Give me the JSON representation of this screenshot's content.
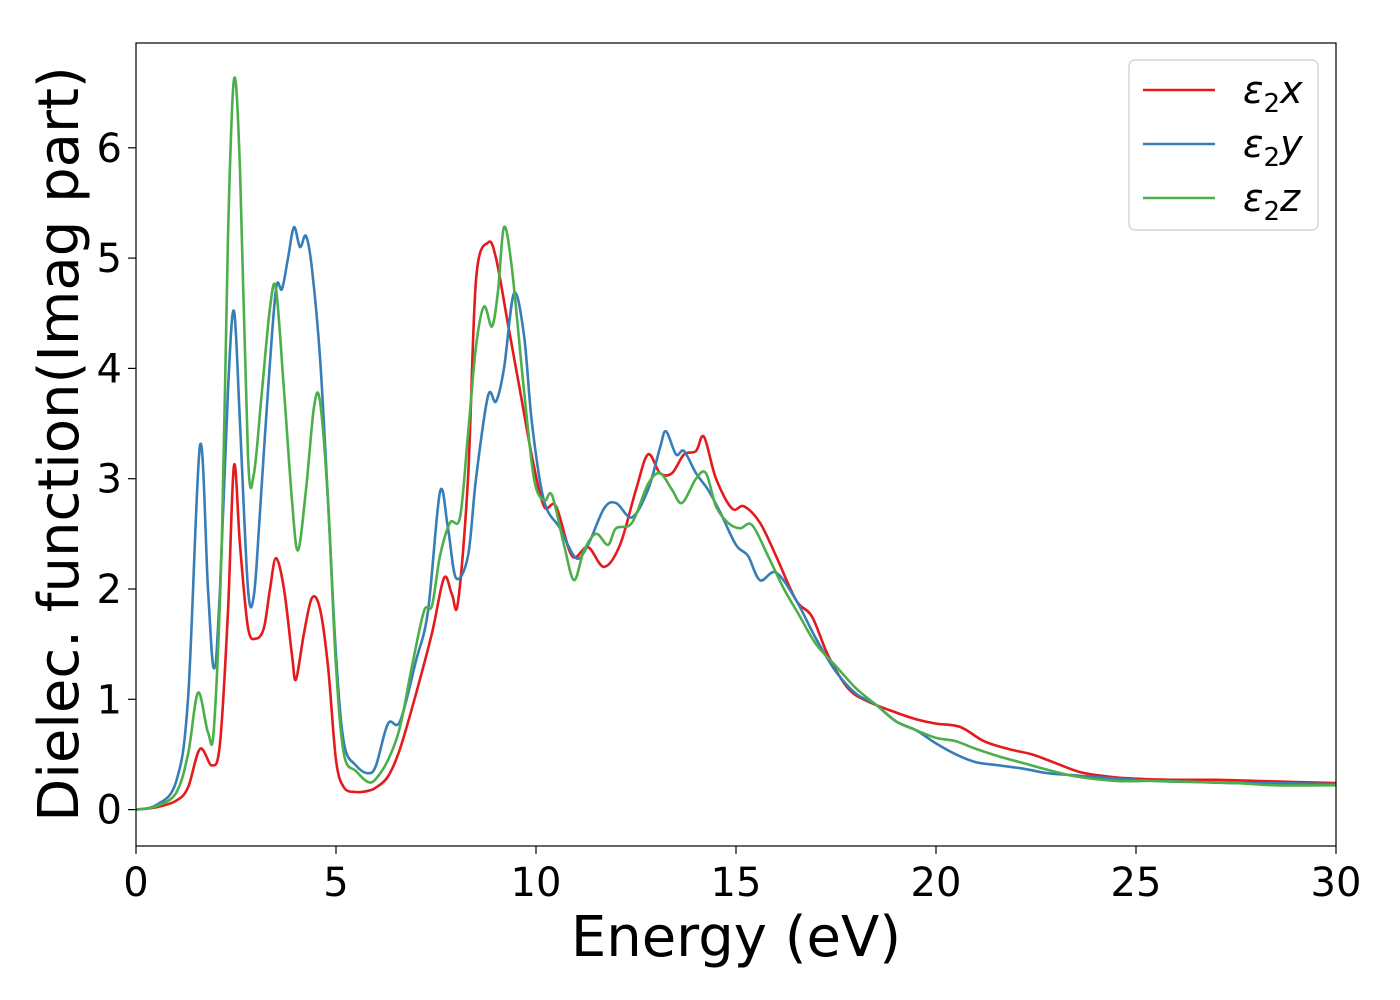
{
  "chart_data": {
    "type": "line",
    "xlabel": "Energy (eV)",
    "ylabel": "Dielec. function(Imag part)",
    "xlim": [
      0,
      30
    ],
    "ylim": [
      -0.33,
      6.95
    ],
    "xticks": [
      0,
      5,
      10,
      15,
      20,
      25,
      30
    ],
    "yticks": [
      0,
      1,
      2,
      3,
      4,
      5,
      6
    ],
    "grid": false,
    "legend_position": "top-right",
    "series": [
      {
        "name": "ε₂x",
        "legend_base": "ε",
        "legend_sub": "2",
        "legend_suffix": "x",
        "color": "#e41a1c",
        "points": [
          [
            0,
            0
          ],
          [
            0.5,
            0.02
          ],
          [
            1,
            0.08
          ],
          [
            1.3,
            0.2
          ],
          [
            1.6,
            0.55
          ],
          [
            1.9,
            0.4
          ],
          [
            2.1,
            0.6
          ],
          [
            2.3,
            1.8
          ],
          [
            2.45,
            3.12
          ],
          [
            2.6,
            2.4
          ],
          [
            2.8,
            1.65
          ],
          [
            3,
            1.55
          ],
          [
            3.2,
            1.65
          ],
          [
            3.35,
            2.0
          ],
          [
            3.5,
            2.28
          ],
          [
            3.7,
            2.0
          ],
          [
            3.9,
            1.4
          ],
          [
            4.0,
            1.18
          ],
          [
            4.2,
            1.6
          ],
          [
            4.4,
            1.92
          ],
          [
            4.6,
            1.82
          ],
          [
            4.8,
            1.3
          ],
          [
            5.0,
            0.45
          ],
          [
            5.2,
            0.2
          ],
          [
            5.5,
            0.16
          ],
          [
            5.8,
            0.17
          ],
          [
            6.0,
            0.2
          ],
          [
            6.3,
            0.3
          ],
          [
            6.6,
            0.55
          ],
          [
            7.0,
            1.05
          ],
          [
            7.4,
            1.6
          ],
          [
            7.7,
            2.1
          ],
          [
            7.9,
            1.95
          ],
          [
            8.05,
            1.88
          ],
          [
            8.3,
            3.0
          ],
          [
            8.5,
            4.8
          ],
          [
            8.8,
            5.14
          ],
          [
            9.0,
            5.0
          ],
          [
            9.3,
            4.4
          ],
          [
            9.6,
            3.8
          ],
          [
            9.9,
            3.2
          ],
          [
            10.2,
            2.75
          ],
          [
            10.5,
            2.75
          ],
          [
            10.9,
            2.3
          ],
          [
            11.3,
            2.38
          ],
          [
            11.7,
            2.2
          ],
          [
            12.1,
            2.4
          ],
          [
            12.5,
            2.9
          ],
          [
            12.8,
            3.22
          ],
          [
            13.1,
            3.05
          ],
          [
            13.4,
            3.05
          ],
          [
            13.7,
            3.22
          ],
          [
            14.0,
            3.25
          ],
          [
            14.2,
            3.38
          ],
          [
            14.5,
            3.0
          ],
          [
            14.9,
            2.73
          ],
          [
            15.2,
            2.75
          ],
          [
            15.6,
            2.6
          ],
          [
            16.0,
            2.3
          ],
          [
            16.5,
            1.9
          ],
          [
            16.9,
            1.75
          ],
          [
            17.3,
            1.4
          ],
          [
            17.8,
            1.1
          ],
          [
            18.3,
            0.98
          ],
          [
            19.0,
            0.88
          ],
          [
            19.5,
            0.82
          ],
          [
            20.0,
            0.78
          ],
          [
            20.6,
            0.75
          ],
          [
            21.2,
            0.62
          ],
          [
            21.8,
            0.55
          ],
          [
            22.4,
            0.5
          ],
          [
            23.0,
            0.42
          ],
          [
            23.6,
            0.34
          ],
          [
            24.3,
            0.3
          ],
          [
            25.0,
            0.28
          ],
          [
            26.0,
            0.27
          ],
          [
            27.0,
            0.27
          ],
          [
            28.0,
            0.26
          ],
          [
            29.0,
            0.25
          ],
          [
            30.0,
            0.24
          ]
        ]
      },
      {
        "name": "ε₂y",
        "legend_base": "ε",
        "legend_sub": "2",
        "legend_suffix": "y",
        "color": "#377eb8",
        "points": [
          [
            0,
            0
          ],
          [
            0.5,
            0.04
          ],
          [
            1,
            0.25
          ],
          [
            1.3,
            1.0
          ],
          [
            1.6,
            3.3
          ],
          [
            1.8,
            2.0
          ],
          [
            1.95,
            1.28
          ],
          [
            2.1,
            2.0
          ],
          [
            2.3,
            3.8
          ],
          [
            2.45,
            4.52
          ],
          [
            2.6,
            3.5
          ],
          [
            2.8,
            2.0
          ],
          [
            2.95,
            1.95
          ],
          [
            3.1,
            2.7
          ],
          [
            3.3,
            3.8
          ],
          [
            3.5,
            4.72
          ],
          [
            3.65,
            4.72
          ],
          [
            3.8,
            5.0
          ],
          [
            3.95,
            5.28
          ],
          [
            4.1,
            5.1
          ],
          [
            4.25,
            5.2
          ],
          [
            4.4,
            4.9
          ],
          [
            4.6,
            4.1
          ],
          [
            4.8,
            2.8
          ],
          [
            5.0,
            1.4
          ],
          [
            5.2,
            0.6
          ],
          [
            5.5,
            0.4
          ],
          [
            5.8,
            0.33
          ],
          [
            6.0,
            0.4
          ],
          [
            6.3,
            0.78
          ],
          [
            6.6,
            0.8
          ],
          [
            7.0,
            1.35
          ],
          [
            7.3,
            1.8
          ],
          [
            7.6,
            2.88
          ],
          [
            7.8,
            2.55
          ],
          [
            8.0,
            2.1
          ],
          [
            8.3,
            2.3
          ],
          [
            8.5,
            3.0
          ],
          [
            8.8,
            3.75
          ],
          [
            9.0,
            3.7
          ],
          [
            9.2,
            4.0
          ],
          [
            9.45,
            4.68
          ],
          [
            9.7,
            4.3
          ],
          [
            9.9,
            3.5
          ],
          [
            10.2,
            2.8
          ],
          [
            10.6,
            2.55
          ],
          [
            11.0,
            2.28
          ],
          [
            11.3,
            2.4
          ],
          [
            11.7,
            2.73
          ],
          [
            12.0,
            2.78
          ],
          [
            12.4,
            2.65
          ],
          [
            12.8,
            2.9
          ],
          [
            13.1,
            3.28
          ],
          [
            13.25,
            3.43
          ],
          [
            13.5,
            3.22
          ],
          [
            13.7,
            3.25
          ],
          [
            14.0,
            3.05
          ],
          [
            14.3,
            2.9
          ],
          [
            14.6,
            2.7
          ],
          [
            15.0,
            2.4
          ],
          [
            15.3,
            2.3
          ],
          [
            15.6,
            2.08
          ],
          [
            16.0,
            2.15
          ],
          [
            16.5,
            1.9
          ],
          [
            17.0,
            1.55
          ],
          [
            17.5,
            1.25
          ],
          [
            18.0,
            1.05
          ],
          [
            18.5,
            0.95
          ],
          [
            19.0,
            0.8
          ],
          [
            19.5,
            0.72
          ],
          [
            20.0,
            0.6
          ],
          [
            20.5,
            0.5
          ],
          [
            21.0,
            0.43
          ],
          [
            21.6,
            0.4
          ],
          [
            22.2,
            0.37
          ],
          [
            22.8,
            0.33
          ],
          [
            23.5,
            0.31
          ],
          [
            24.5,
            0.28
          ],
          [
            25.5,
            0.26
          ],
          [
            26.5,
            0.25
          ],
          [
            27.5,
            0.24
          ],
          [
            28.5,
            0.24
          ],
          [
            30.0,
            0.23
          ]
        ]
      },
      {
        "name": "ε₂z",
        "legend_base": "ε",
        "legend_sub": "2",
        "legend_suffix": "z",
        "color": "#4daf4a",
        "points": [
          [
            0,
            0
          ],
          [
            0.5,
            0.03
          ],
          [
            1,
            0.15
          ],
          [
            1.3,
            0.5
          ],
          [
            1.55,
            1.06
          ],
          [
            1.8,
            0.7
          ],
          [
            1.95,
            0.75
          ],
          [
            2.15,
            2.5
          ],
          [
            2.3,
            5.2
          ],
          [
            2.45,
            6.62
          ],
          [
            2.6,
            5.8
          ],
          [
            2.8,
            3.2
          ],
          [
            2.95,
            3.05
          ],
          [
            3.15,
            3.8
          ],
          [
            3.35,
            4.55
          ],
          [
            3.5,
            4.72
          ],
          [
            3.7,
            3.8
          ],
          [
            3.9,
            2.8
          ],
          [
            4.05,
            2.35
          ],
          [
            4.25,
            2.9
          ],
          [
            4.45,
            3.65
          ],
          [
            4.6,
            3.7
          ],
          [
            4.8,
            2.8
          ],
          [
            5.0,
            1.3
          ],
          [
            5.2,
            0.5
          ],
          [
            5.5,
            0.35
          ],
          [
            5.8,
            0.25
          ],
          [
            6.0,
            0.28
          ],
          [
            6.3,
            0.45
          ],
          [
            6.6,
            0.75
          ],
          [
            6.9,
            1.3
          ],
          [
            7.2,
            1.8
          ],
          [
            7.4,
            1.85
          ],
          [
            7.6,
            2.3
          ],
          [
            7.85,
            2.6
          ],
          [
            8.1,
            2.65
          ],
          [
            8.3,
            3.4
          ],
          [
            8.5,
            4.2
          ],
          [
            8.7,
            4.56
          ],
          [
            8.9,
            4.38
          ],
          [
            9.05,
            4.7
          ],
          [
            9.2,
            5.28
          ],
          [
            9.4,
            4.9
          ],
          [
            9.7,
            3.8
          ],
          [
            9.95,
            3.0
          ],
          [
            10.2,
            2.8
          ],
          [
            10.4,
            2.85
          ],
          [
            10.7,
            2.4
          ],
          [
            10.95,
            2.08
          ],
          [
            11.2,
            2.35
          ],
          [
            11.5,
            2.5
          ],
          [
            11.8,
            2.4
          ],
          [
            12.0,
            2.55
          ],
          [
            12.4,
            2.6
          ],
          [
            12.8,
            2.95
          ],
          [
            13.1,
            3.05
          ],
          [
            13.4,
            2.9
          ],
          [
            13.65,
            2.78
          ],
          [
            14.0,
            3.0
          ],
          [
            14.25,
            3.05
          ],
          [
            14.5,
            2.75
          ],
          [
            14.8,
            2.6
          ],
          [
            15.1,
            2.55
          ],
          [
            15.4,
            2.58
          ],
          [
            15.8,
            2.3
          ],
          [
            16.2,
            2.0
          ],
          [
            16.6,
            1.75
          ],
          [
            17.0,
            1.5
          ],
          [
            17.5,
            1.3
          ],
          [
            18.0,
            1.1
          ],
          [
            18.5,
            0.95
          ],
          [
            19.0,
            0.8
          ],
          [
            19.5,
            0.72
          ],
          [
            20.0,
            0.65
          ],
          [
            20.5,
            0.62
          ],
          [
            21.0,
            0.55
          ],
          [
            21.6,
            0.48
          ],
          [
            22.2,
            0.42
          ],
          [
            22.8,
            0.36
          ],
          [
            23.5,
            0.3
          ],
          [
            24.5,
            0.26
          ],
          [
            25.5,
            0.26
          ],
          [
            26.5,
            0.25
          ],
          [
            27.5,
            0.24
          ],
          [
            28.5,
            0.22
          ],
          [
            30.0,
            0.22
          ]
        ]
      }
    ]
  }
}
